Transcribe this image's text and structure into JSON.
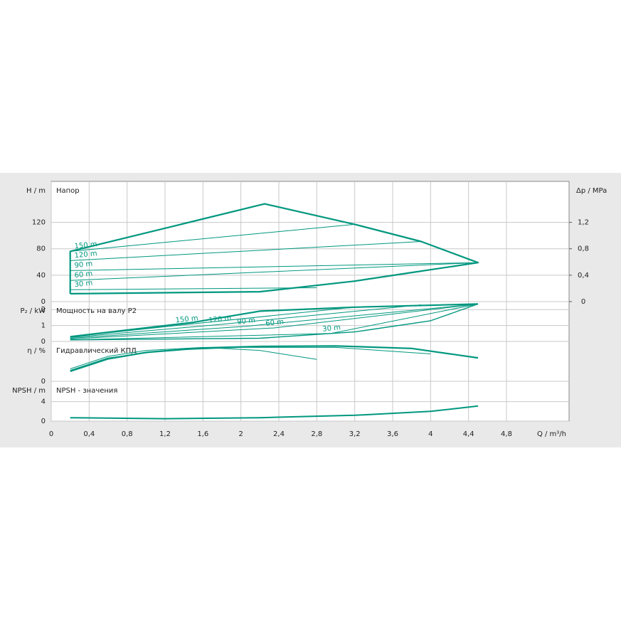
{
  "chart_data": [
    {
      "type": "line",
      "title": "Напор",
      "ylabel": "H / m",
      "y2label": "Δp / MPa",
      "xlim": [
        0,
        5.46
      ],
      "ylim": [
        0,
        182
      ],
      "yticks": [
        0,
        40,
        80,
        120
      ],
      "y2lim": [
        0,
        1.82
      ],
      "y2ticks": [
        0,
        {
          "value": 0.4,
          "label": "0,4"
        },
        {
          "value": 0.8,
          "label": "0,8"
        },
        {
          "value": 1.2,
          "label": "1,2"
        }
      ],
      "grid": true,
      "series": [
        {
          "color": "#00977f",
          "linewidth": 2.2,
          "x": [
            0.2,
            0.2,
            2.25,
            3.2,
            3.9,
            4.5,
            3.8,
            3.2,
            2.2,
            0.2
          ],
          "values": [
            12,
            76,
            148,
            117,
            91,
            59,
            44,
            31,
            15,
            12
          ]
        },
        {
          "name": "150 m",
          "color": "#00977f",
          "linewidth": 1,
          "x": [
            0.2,
            3.2
          ],
          "values": [
            76,
            117
          ]
        },
        {
          "name": "120 m",
          "color": "#00977f",
          "linewidth": 1,
          "x": [
            0.2,
            3.9
          ],
          "values": [
            62,
            91
          ]
        },
        {
          "name": "90 m",
          "color": "#00977f",
          "linewidth": 1,
          "x": [
            0.2,
            4.5
          ],
          "values": [
            47,
            59
          ]
        },
        {
          "name": "60 m",
          "color": "#00977f",
          "linewidth": 1,
          "x": [
            0.2,
            4.5
          ],
          "values": [
            32,
            59
          ]
        },
        {
          "name": "30 m",
          "color": "#00977f",
          "linewidth": 1,
          "x": [
            0.2,
            2.8
          ],
          "values": [
            18,
            21
          ]
        }
      ]
    },
    {
      "type": "line",
      "title": "Мощность на валу P2",
      "ylabel": "P₂ / kW",
      "xlim": [
        0,
        5.46
      ],
      "ylim": [
        0,
        2.5
      ],
      "yticks": [
        0,
        1,
        2
      ],
      "grid": true,
      "series": [
        {
          "color": "#00977f",
          "linewidth": 2.2,
          "x": [
            0.2,
            1.5,
            2.2,
            3.2,
            4.5
          ],
          "values": [
            0.3,
            1.2,
            1.9,
            2.15,
            2.35
          ]
        },
        {
          "color": "#00977f",
          "linewidth": 1.4,
          "x": [
            0.2,
            2.2,
            3.2,
            4,
            4.5
          ],
          "values": [
            0.1,
            0.2,
            0.6,
            1.3,
            2.35
          ]
        },
        {
          "name": "150 m",
          "color": "#00977f",
          "linewidth": 1,
          "x": [
            0.2,
            1.4,
            3.2
          ],
          "values": [
            0.28,
            1.05,
            2.15
          ]
        },
        {
          "name": "120 m",
          "color": "#00977f",
          "linewidth": 1,
          "x": [
            0.2,
            1.75,
            3.9
          ],
          "values": [
            0.25,
            1.05,
            2.3
          ]
        },
        {
          "name": "90 m",
          "color": "#00977f",
          "linewidth": 1,
          "x": [
            0.2,
            2.05,
            4.5
          ],
          "values": [
            0.2,
            0.95,
            2.35
          ]
        },
        {
          "name": "60 m",
          "color": "#00977f",
          "linewidth": 1,
          "x": [
            0.2,
            2.35,
            4.5
          ],
          "values": [
            0.15,
            0.85,
            2.35
          ]
        },
        {
          "name": "30 m",
          "color": "#00977f",
          "linewidth": 1,
          "x": [
            0.2,
            2.95,
            4.5
          ],
          "values": [
            0.1,
            0.5,
            2.35
          ]
        }
      ]
    },
    {
      "type": "line",
      "title": "Гидравлический КПД",
      "ylabel": "η / %",
      "xlim": [
        0,
        5.46
      ],
      "ylim": [
        0,
        80
      ],
      "yticks": [
        0
      ],
      "grid": true,
      "series": [
        {
          "color": "#00977f",
          "linewidth": 2.2,
          "x": [
            0.2,
            0.6,
            1,
            1.6,
            2.2,
            3,
            3.8,
            4.5
          ],
          "values": [
            20,
            45,
            58,
            67,
            70,
            71,
            66,
            47
          ]
        },
        {
          "color": "#00977f",
          "linewidth": 1,
          "x": [
            0.2,
            0.6,
            1,
            1.6,
            2.2,
            2.8
          ],
          "values": [
            25,
            50,
            62,
            68,
            62,
            44
          ]
        },
        {
          "color": "#00977f",
          "linewidth": 1,
          "x": [
            0.2,
            0.6,
            1.2,
            2,
            3,
            4
          ],
          "values": [
            22,
            47,
            62,
            68,
            68,
            55
          ]
        }
      ]
    },
    {
      "type": "line",
      "title": "NPSH - значения",
      "ylabel": "NPSH / m",
      "xlim": [
        0,
        5.46
      ],
      "ylim": [
        0,
        8.2
      ],
      "yticks": [
        0,
        4
      ],
      "grid": true,
      "xlabel": "Q / m³/h",
      "xticks": [
        0,
        {
          "value": 0.4,
          "label": "0,4"
        },
        {
          "value": 0.8,
          "label": "0,8"
        },
        {
          "value": 1.2,
          "label": "1,2"
        },
        {
          "value": 1.6,
          "label": "1,6"
        },
        2,
        {
          "value": 2.4,
          "label": "2,4"
        },
        {
          "value": 2.8,
          "label": "2,8"
        },
        {
          "value": 3.2,
          "label": "3,2"
        },
        {
          "value": 3.6,
          "label": "3,6"
        },
        4,
        {
          "value": 4.4,
          "label": "4,4"
        },
        {
          "value": 4.8,
          "label": "4,8"
        }
      ],
      "series": [
        {
          "color": "#00977f",
          "linewidth": 2,
          "x": [
            0.2,
            1.2,
            2.2,
            3.2,
            4,
            4.5
          ],
          "values": [
            0.7,
            0.5,
            0.7,
            1.2,
            2,
            3.1
          ]
        }
      ]
    }
  ]
}
